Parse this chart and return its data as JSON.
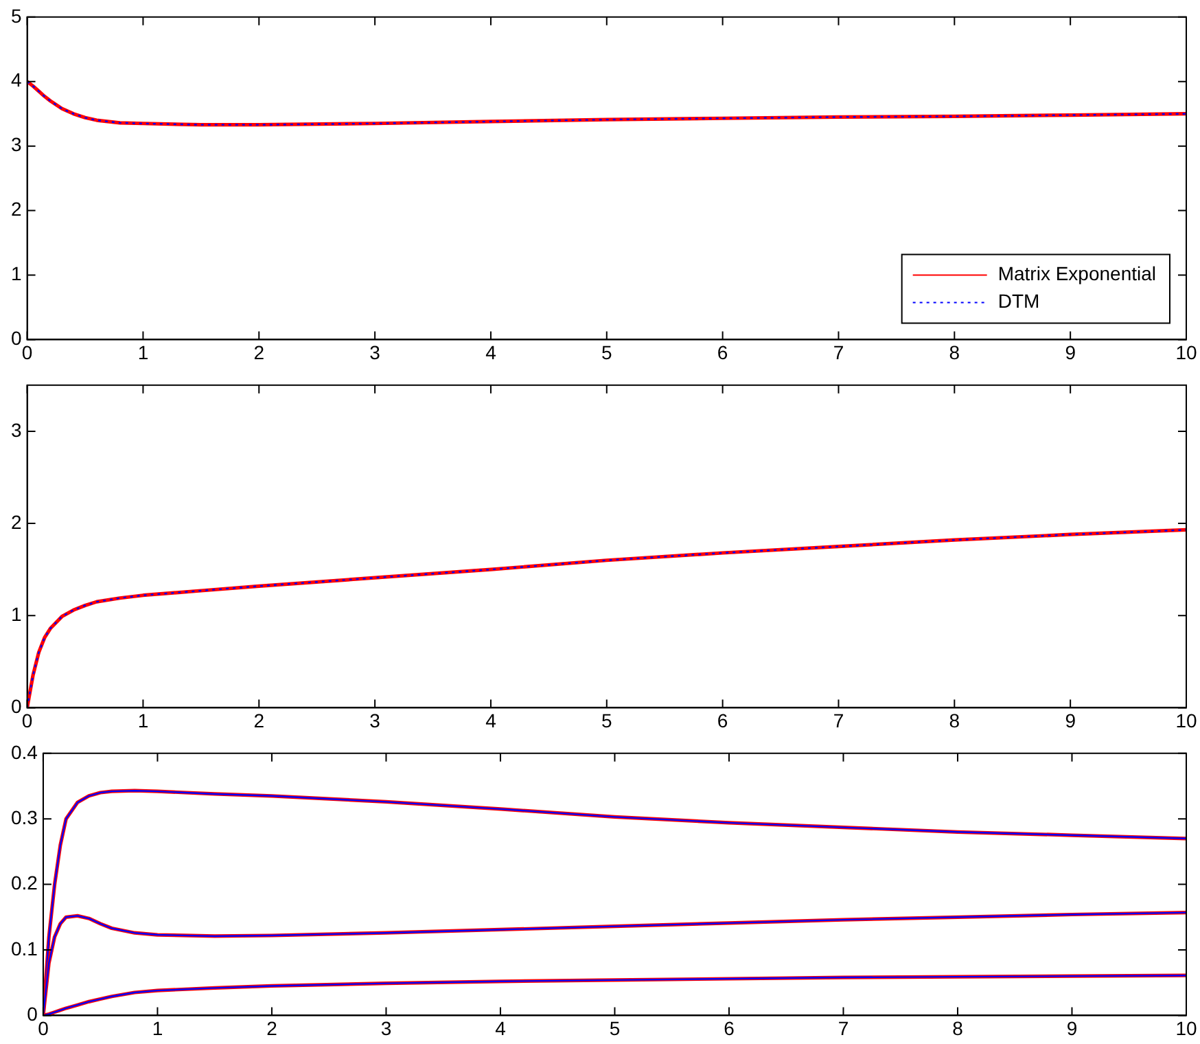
{
  "chart_data": [
    {
      "type": "line",
      "x": [
        0,
        0.05,
        0.1,
        0.15,
        0.2,
        0.3,
        0.4,
        0.5,
        0.6,
        0.8,
        1,
        1.5,
        2,
        3,
        4,
        5,
        6,
        7,
        8,
        9,
        10
      ],
      "xlim": [
        0,
        10
      ],
      "xticks": [
        0,
        1,
        2,
        3,
        4,
        5,
        6,
        7,
        8,
        9,
        10
      ],
      "ylim": [
        0,
        5
      ],
      "yticks": [
        0,
        1,
        2,
        3,
        4,
        5
      ],
      "grid": false,
      "legend": "bottom right",
      "marker": "none",
      "series": [
        {
          "name": "Matrix Exponential",
          "color": "#ff0000",
          "line_style": "solid",
          "values": [
            4,
            3.93,
            3.85,
            3.77,
            3.7,
            3.58,
            3.5,
            3.44,
            3.4,
            3.36,
            3.35,
            3.33,
            3.33,
            3.35,
            3.38,
            3.41,
            3.43,
            3.45,
            3.46,
            3.48,
            3.5
          ]
        },
        {
          "name": "DTM",
          "color": "#0000ff",
          "line_style": "dotted",
          "values": [
            4,
            3.93,
            3.85,
            3.77,
            3.7,
            3.58,
            3.5,
            3.44,
            3.4,
            3.36,
            3.35,
            3.33,
            3.33,
            3.35,
            3.38,
            3.41,
            3.43,
            3.45,
            3.46,
            3.48,
            3.5
          ]
        }
      ]
    },
    {
      "type": "line",
      "x": [
        0,
        0.05,
        0.1,
        0.15,
        0.2,
        0.3,
        0.4,
        0.5,
        0.6,
        0.8,
        1,
        1.5,
        2,
        3,
        4,
        5,
        6,
        7,
        8,
        9,
        10
      ],
      "xlim": [
        0,
        10
      ],
      "xticks": [
        0,
        1,
        2,
        3,
        4,
        5,
        6,
        7,
        8,
        9,
        10
      ],
      "ylim": [
        0,
        3.5
      ],
      "yticks": [
        0,
        1,
        2,
        3
      ],
      "grid": false,
      "marker": "none",
      "series": [
        {
          "color": "#ff0000",
          "line_style": "solid",
          "values": [
            0,
            0.35,
            0.6,
            0.76,
            0.86,
            0.99,
            1.06,
            1.11,
            1.15,
            1.19,
            1.22,
            1.27,
            1.32,
            1.41,
            1.5,
            1.6,
            1.68,
            1.75,
            1.82,
            1.88,
            1.93
          ]
        },
        {
          "color": "#0000ff",
          "line_style": "dotted",
          "values": [
            0,
            0.35,
            0.6,
            0.76,
            0.86,
            0.99,
            1.06,
            1.11,
            1.15,
            1.19,
            1.22,
            1.27,
            1.32,
            1.41,
            1.5,
            1.6,
            1.68,
            1.75,
            1.82,
            1.88,
            1.93
          ]
        }
      ]
    },
    {
      "type": "line",
      "x": [
        0,
        0.05,
        0.1,
        0.15,
        0.2,
        0.3,
        0.4,
        0.5,
        0.6,
        0.8,
        1,
        1.5,
        2,
        3,
        4,
        5,
        6,
        7,
        8,
        9,
        10
      ],
      "xlim": [
        0,
        10
      ],
      "xticks": [
        0,
        1,
        2,
        3,
        4,
        5,
        6,
        7,
        8,
        9,
        10
      ],
      "ylim": [
        0,
        0.4
      ],
      "yticks": [
        0,
        0.1,
        0.2,
        0.3,
        0.4
      ],
      "grid": false,
      "marker": "none",
      "series": [
        {
          "color": "#ff0000",
          "line_style": "solid",
          "values": [
            0,
            0.12,
            0.2,
            0.26,
            0.3,
            0.325,
            0.335,
            0.34,
            0.342,
            0.343,
            0.342,
            0.338,
            0.335,
            0.326,
            0.315,
            0.303,
            0.294,
            0.287,
            0.28,
            0.275,
            0.27
          ]
        },
        {
          "color": "#0000ff",
          "line_style": "solid",
          "values": [
            0,
            0.12,
            0.2,
            0.26,
            0.3,
            0.325,
            0.335,
            0.34,
            0.342,
            0.343,
            0.342,
            0.338,
            0.335,
            0.326,
            0.315,
            0.303,
            0.294,
            0.287,
            0.28,
            0.275,
            0.27
          ]
        },
        {
          "color": "#ff0000",
          "line_style": "solid",
          "values": [
            0,
            0.08,
            0.12,
            0.14,
            0.15,
            0.152,
            0.148,
            0.14,
            0.133,
            0.126,
            0.123,
            0.121,
            0.122,
            0.126,
            0.131,
            0.136,
            0.141,
            0.146,
            0.15,
            0.154,
            0.157
          ]
        },
        {
          "color": "#0000ff",
          "line_style": "solid",
          "values": [
            0,
            0.08,
            0.12,
            0.14,
            0.15,
            0.152,
            0.148,
            0.14,
            0.133,
            0.126,
            0.123,
            0.121,
            0.122,
            0.126,
            0.131,
            0.136,
            0.141,
            0.146,
            0.15,
            0.154,
            0.157
          ]
        },
        {
          "color": "#ff0000",
          "line_style": "solid",
          "values": [
            0,
            0.002,
            0.005,
            0.008,
            0.011,
            0.016,
            0.021,
            0.025,
            0.029,
            0.035,
            0.038,
            0.042,
            0.045,
            0.049,
            0.052,
            0.054,
            0.056,
            0.058,
            0.059,
            0.06,
            0.061
          ]
        },
        {
          "color": "#0000ff",
          "line_style": "solid",
          "values": [
            0,
            0.002,
            0.005,
            0.008,
            0.011,
            0.016,
            0.021,
            0.025,
            0.029,
            0.035,
            0.038,
            0.042,
            0.045,
            0.049,
            0.052,
            0.054,
            0.056,
            0.058,
            0.059,
            0.06,
            0.061
          ]
        }
      ]
    }
  ]
}
